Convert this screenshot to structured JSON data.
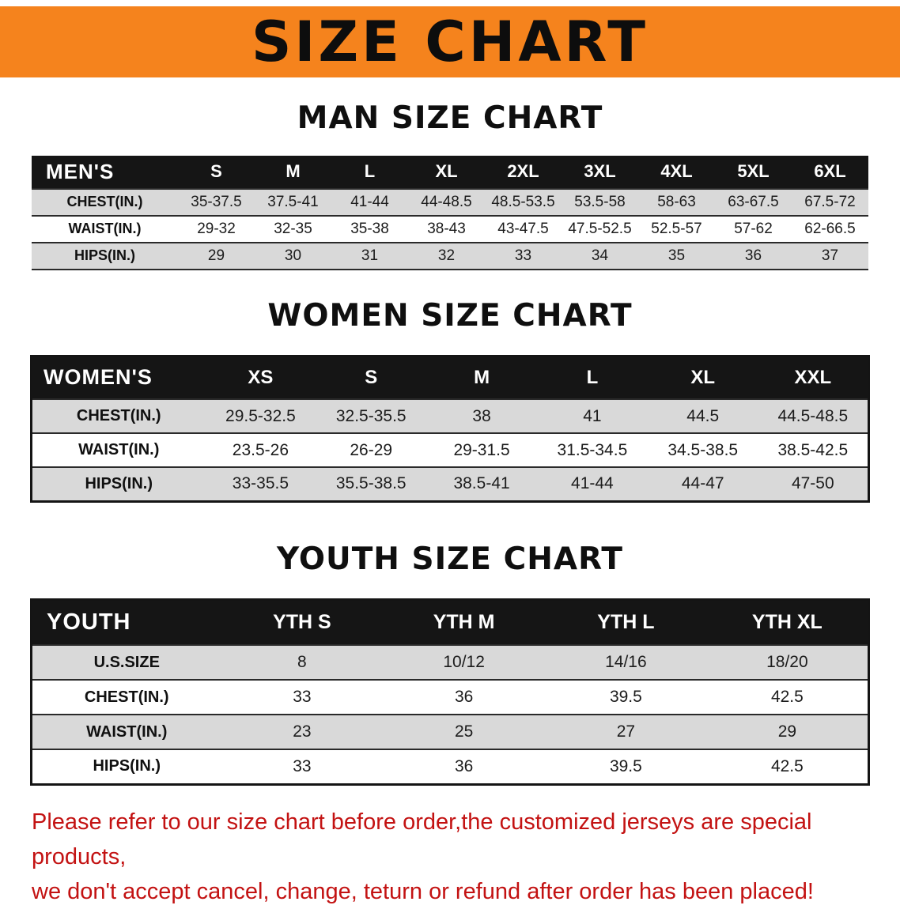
{
  "banner": {
    "title": "SIZE CHART",
    "background": "#f5831d",
    "title_color": "#0d0d0d"
  },
  "chart_data": [
    {
      "type": "table",
      "title": "MAN SIZE CHART",
      "columns": [
        "MEN'S",
        "S",
        "M",
        "L",
        "XL",
        "2XL",
        "3XL",
        "4XL",
        "5XL",
        "6XL"
      ],
      "rows": [
        [
          "CHEST(IN.)",
          "35-37.5",
          "37.5-41",
          "41-44",
          "44-48.5",
          "48.5-53.5",
          "53.5-58",
          "58-63",
          "63-67.5",
          "67.5-72"
        ],
        [
          "WAIST(IN.)",
          "29-32",
          "32-35",
          "35-38",
          "38-43",
          "43-47.5",
          "47.5-52.5",
          "52.5-57",
          "57-62",
          "62-66.5"
        ],
        [
          "HIPS(IN.)",
          "29",
          "30",
          "31",
          "32",
          "33",
          "34",
          "35",
          "36",
          "37"
        ]
      ]
    },
    {
      "type": "table",
      "title": "WOMEN SIZE CHART",
      "columns": [
        "WOMEN'S",
        "XS",
        "S",
        "M",
        "L",
        "XL",
        "XXL"
      ],
      "rows": [
        [
          "CHEST(IN.)",
          "29.5-32.5",
          "32.5-35.5",
          "38",
          "41",
          "44.5",
          "44.5-48.5"
        ],
        [
          "WAIST(IN.)",
          "23.5-26",
          "26-29",
          "29-31.5",
          "31.5-34.5",
          "34.5-38.5",
          "38.5-42.5"
        ],
        [
          "HIPS(IN.)",
          "33-35.5",
          "35.5-38.5",
          "38.5-41",
          "41-44",
          "44-47",
          "47-50"
        ]
      ]
    },
    {
      "type": "table",
      "title": "YOUTH SIZE CHART",
      "columns": [
        "YOUTH",
        "YTH S",
        "YTH M",
        "YTH L",
        "YTH XL"
      ],
      "rows": [
        [
          "U.S.SIZE",
          "8",
          "10/12",
          "14/16",
          "18/20"
        ],
        [
          "CHEST(IN.)",
          "33",
          "36",
          "39.5",
          "42.5"
        ],
        [
          "WAIST(IN.)",
          "23",
          "25",
          "27",
          "29"
        ],
        [
          "HIPS(IN.)",
          "33",
          "36",
          "39.5",
          "42.5"
        ]
      ]
    }
  ],
  "disclaimer": {
    "line1": "Please refer to our size chart before order,the customized jerseys are special products,",
    "line2": "we don't accept cancel, change, teturn or refund after order has been placed!",
    "color": "#c31212"
  },
  "colors": {
    "header_row_bg": "#151515",
    "stripe_gray": "#d9d9d9",
    "accent_orange": "#f5831d",
    "warning_red": "#c31212"
  }
}
